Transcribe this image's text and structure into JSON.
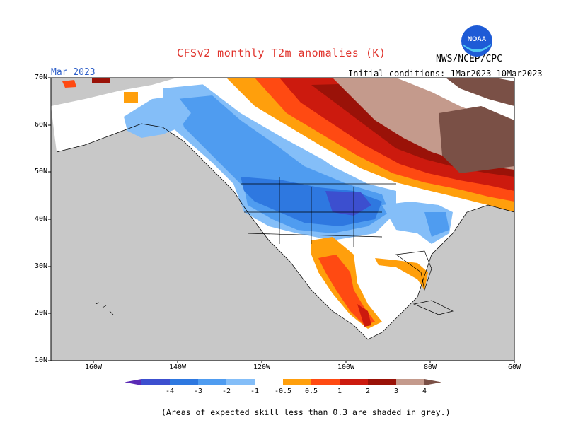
{
  "title": "CFSv2 monthly T2m anomalies (K)",
  "month_label": "Mar 2023",
  "initial_conditions": "Initial conditions: 1Mar2023-10Mar2023",
  "agency": "NWS/NCEP/CPC",
  "logo_text": "NOAA",
  "footnote": "(Areas of expected skill less than 0.3 are shaded in grey.)",
  "map": {
    "lat_labels": [
      "70N",
      "60N",
      "50N",
      "40N",
      "30N",
      "20N",
      "10N"
    ],
    "lon_labels": [
      "160W",
      "140W",
      "120W",
      "100W",
      "80W",
      "60W"
    ],
    "lat_range": [
      10,
      70
    ],
    "lon_range": [
      -170,
      -60
    ],
    "low_skill_color": "#c8c8c8",
    "land_outline_color": "#000000",
    "regions": [
      {
        "name": "western-us-cold",
        "anomaly": -1.5
      },
      {
        "name": "north-plains-cold",
        "anomaly": -2.0
      },
      {
        "name": "alaska-cold",
        "anomaly": -1.0
      },
      {
        "name": "mexico-warm",
        "anomaly": 1.5
      },
      {
        "name": "eastern-canada-warm",
        "anomaly": 3.5
      },
      {
        "name": "quebec-warm",
        "anomaly": 4.0
      },
      {
        "name": "gulf-coast-warm",
        "anomaly": 0.5
      }
    ]
  },
  "colorbar": {
    "labels": [
      "-4",
      "-3",
      "-2",
      "-1",
      "-0.5",
      "0.5",
      "1",
      "2",
      "3",
      "4"
    ],
    "colors": [
      "#5a2ab5",
      "#3c4fcf",
      "#2e78e0",
      "#4f9cf0",
      "#84bef8",
      "#ffffff",
      "#ff9f0c",
      "#ff4a12",
      "#cc1a0e",
      "#9a1208",
      "#c49a8c",
      "#7a5046"
    ]
  }
}
